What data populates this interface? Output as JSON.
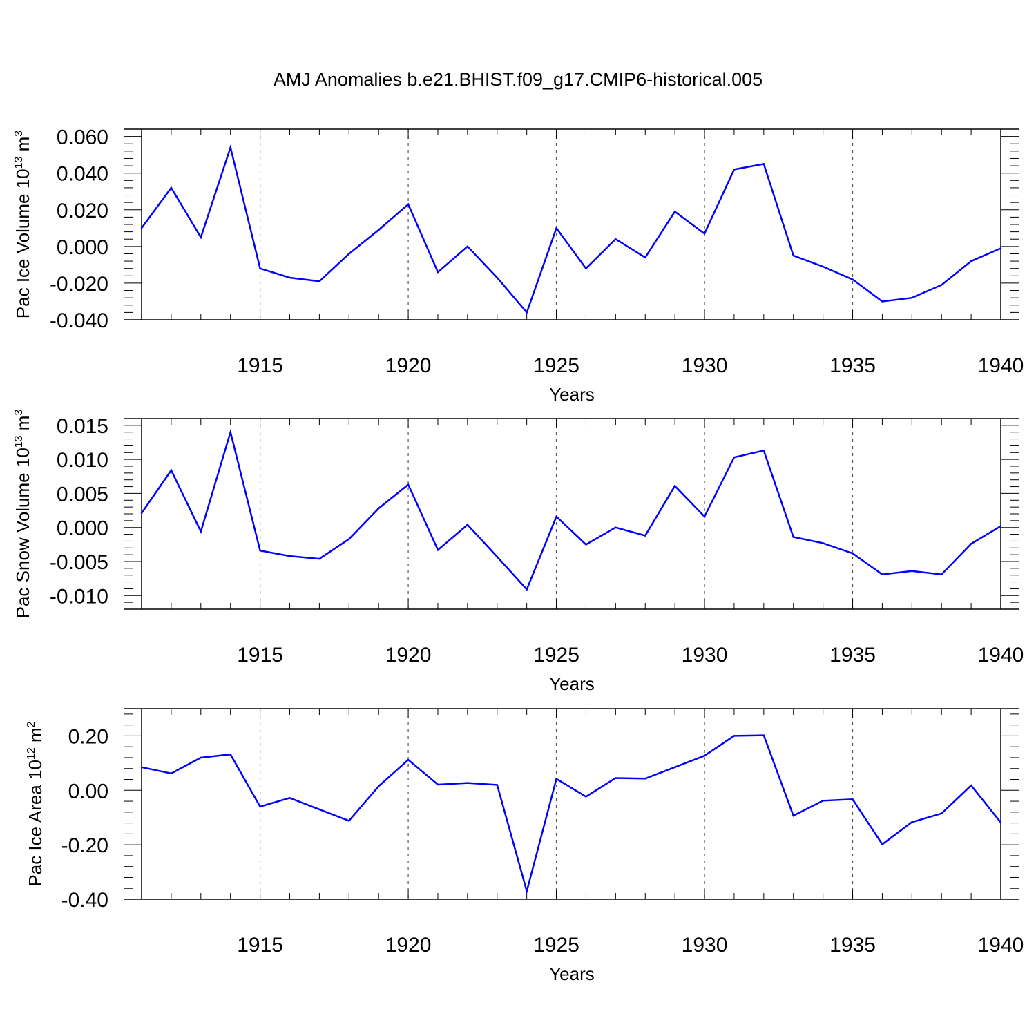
{
  "title": "AMJ Anomalies b.e21.BHIST.f09_g17.CMIP6-historical.005",
  "chart_data": [
    {
      "type": "line",
      "title": "AMJ Anomalies b.e21.BHIST.f09_g17.CMIP6-historical.005",
      "ylabel_main": "Pac Ice Volume 10",
      "ylabel_exp": "13",
      "ylabel_unit": "m",
      "ylabel_unit_exp": "3",
      "xlabel": "Years",
      "xlim": [
        1911,
        1940
      ],
      "ylim": [
        -0.04,
        0.064
      ],
      "yticks": [
        -0.04,
        -0.02,
        0.0,
        0.02,
        0.04,
        0.06
      ],
      "ytick_labels": [
        "-0.040",
        "-0.020",
        "0.000",
        "0.020",
        "0.040",
        "0.060"
      ],
      "xticks": [
        1915,
        1920,
        1925,
        1930,
        1935,
        1940
      ],
      "xtick_labels": [
        "1915",
        "1920",
        "1925",
        "1930",
        "1935",
        "1940"
      ],
      "line_color": "#0000ff",
      "series": [
        {
          "name": "Pac Ice Volume",
          "x": [
            1911,
            1912,
            1913,
            1914,
            1915,
            1916,
            1917,
            1918,
            1919,
            1920,
            1921,
            1922,
            1923,
            1924,
            1925,
            1926,
            1927,
            1928,
            1929,
            1930,
            1931,
            1932,
            1933,
            1934,
            1935,
            1936,
            1937,
            1938,
            1939,
            1940
          ],
          "values": [
            0.01,
            0.032,
            0.005,
            0.054,
            -0.012,
            -0.017,
            -0.019,
            -0.004,
            0.009,
            0.023,
            -0.014,
            0.0,
            -0.017,
            -0.036,
            0.01,
            -0.012,
            0.004,
            -0.006,
            0.019,
            0.007,
            0.042,
            0.045,
            -0.005,
            -0.011,
            -0.018,
            -0.03,
            -0.028,
            -0.021,
            -0.008,
            -0.001
          ]
        }
      ]
    },
    {
      "type": "line",
      "ylabel_main": "Pac Snow Volume 10",
      "ylabel_exp": "13",
      "ylabel_unit": "m",
      "ylabel_unit_exp": "3",
      "xlabel": "Years",
      "xlim": [
        1911,
        1940
      ],
      "ylim": [
        -0.012,
        0.016
      ],
      "yticks": [
        -0.01,
        -0.005,
        0.0,
        0.005,
        0.01,
        0.015
      ],
      "ytick_labels": [
        "-0.010",
        "-0.005",
        "0.000",
        "0.005",
        "0.010",
        "0.015"
      ],
      "xticks": [
        1915,
        1920,
        1925,
        1930,
        1935,
        1940
      ],
      "xtick_labels": [
        "1915",
        "1920",
        "1925",
        "1930",
        "1935",
        "1940"
      ],
      "line_color": "#0000ff",
      "series": [
        {
          "name": "Pac Snow Volume",
          "x": [
            1911,
            1912,
            1913,
            1914,
            1915,
            1916,
            1917,
            1918,
            1919,
            1920,
            1921,
            1922,
            1923,
            1924,
            1925,
            1926,
            1927,
            1928,
            1929,
            1930,
            1931,
            1932,
            1933,
            1934,
            1935,
            1936,
            1937,
            1938,
            1939,
            1940
          ],
          "values": [
            0.0021,
            0.0084,
            -0.0006,
            0.014,
            -0.0034,
            -0.0042,
            -0.0046,
            -0.0017,
            0.0028,
            0.0063,
            -0.0033,
            0.0004,
            -0.0043,
            -0.0091,
            0.0016,
            -0.0025,
            0.0,
            -0.0012,
            0.0061,
            0.0016,
            0.0103,
            0.0113,
            -0.0014,
            -0.0023,
            -0.0038,
            -0.0069,
            -0.0064,
            -0.0069,
            -0.0024,
            0.0002
          ]
        }
      ]
    },
    {
      "type": "line",
      "ylabel_main": "Pac Ice Area 10",
      "ylabel_exp": "12",
      "ylabel_unit": "m",
      "ylabel_unit_exp": "2",
      "xlabel": "Years",
      "xlim": [
        1911,
        1940
      ],
      "ylim": [
        -0.4,
        0.3
      ],
      "yticks": [
        -0.4,
        -0.2,
        0.0,
        0.2
      ],
      "ytick_labels": [
        "-0.40",
        "-0.20",
        "0.00",
        "0.20"
      ],
      "xticks": [
        1915,
        1920,
        1925,
        1930,
        1935,
        1940
      ],
      "xtick_labels": [
        "1915",
        "1920",
        "1925",
        "1930",
        "1935",
        "1940"
      ],
      "line_color": "#0000ff",
      "series": [
        {
          "name": "Pac Ice Area",
          "x": [
            1911,
            1912,
            1913,
            1914,
            1915,
            1916,
            1917,
            1918,
            1919,
            1920,
            1921,
            1922,
            1923,
            1924,
            1925,
            1926,
            1927,
            1928,
            1929,
            1930,
            1931,
            1932,
            1933,
            1934,
            1935,
            1936,
            1937,
            1938,
            1939,
            1940
          ],
          "values": [
            0.085,
            0.062,
            0.12,
            0.132,
            -0.06,
            -0.028,
            -0.07,
            -0.112,
            0.015,
            0.112,
            0.021,
            0.027,
            0.02,
            -0.37,
            0.042,
            -0.023,
            0.045,
            0.043,
            0.085,
            0.127,
            0.2,
            0.202,
            -0.093,
            -0.038,
            -0.033,
            -0.198,
            -0.117,
            -0.085,
            0.018,
            -0.118
          ]
        }
      ]
    }
  ]
}
